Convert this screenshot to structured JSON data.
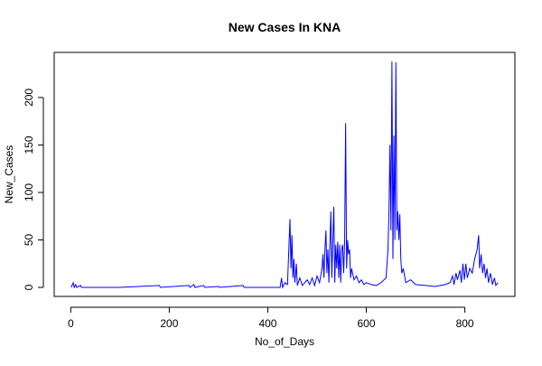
{
  "chart_data": {
    "type": "line",
    "title": "New Cases In KNA",
    "x_label": "No_of_Days",
    "y_label": "New_Cases",
    "color": "#0000ff",
    "x": [
      1,
      5,
      7,
      10,
      12,
      20,
      22,
      100,
      180,
      182,
      240,
      242,
      250,
      252,
      270,
      272,
      300,
      302,
      350,
      352,
      400,
      425,
      428,
      430,
      435,
      440,
      445,
      447,
      449,
      451,
      453,
      455,
      458,
      460,
      465,
      470,
      480,
      485,
      490,
      495,
      500,
      505,
      510,
      512,
      514,
      516,
      518,
      520,
      522,
      524,
      526,
      528,
      530,
      532,
      534,
      536,
      538,
      540,
      542,
      544,
      546,
      548,
      550,
      552,
      554,
      556,
      558,
      560,
      562,
      564,
      566,
      568,
      570,
      575,
      580,
      585,
      590,
      595,
      600,
      610,
      620,
      630,
      640,
      644,
      646,
      648,
      650,
      652,
      654,
      656,
      658,
      660,
      662,
      664,
      666,
      668,
      670,
      672,
      675,
      680,
      690,
      700,
      720,
      740,
      760,
      770,
      775,
      778,
      782,
      785,
      790,
      793,
      796,
      799,
      802,
      805,
      810,
      815,
      820,
      825,
      828,
      830,
      833,
      836,
      839,
      842,
      845,
      848,
      852,
      856,
      860,
      863,
      867
    ],
    "values": [
      0,
      5,
      0,
      3,
      0,
      2,
      0,
      0,
      2,
      0,
      2,
      0,
      3,
      0,
      2,
      0,
      1,
      0,
      2,
      0,
      0,
      0,
      10,
      0,
      5,
      3,
      72,
      20,
      55,
      10,
      30,
      5,
      25,
      2,
      10,
      2,
      8,
      3,
      10,
      2,
      12,
      5,
      20,
      35,
      10,
      40,
      60,
      15,
      40,
      5,
      45,
      80,
      10,
      50,
      85,
      5,
      45,
      20,
      48,
      10,
      45,
      5,
      40,
      45,
      15,
      48,
      173,
      20,
      50,
      35,
      40,
      10,
      20,
      8,
      12,
      5,
      8,
      3,
      5,
      3,
      2,
      5,
      10,
      40,
      80,
      150,
      60,
      238,
      30,
      160,
      50,
      237,
      60,
      80,
      50,
      77,
      30,
      15,
      20,
      5,
      8,
      3,
      2,
      1,
      3,
      5,
      12,
      3,
      15,
      8,
      18,
      5,
      25,
      8,
      25,
      10,
      20,
      15,
      30,
      40,
      55,
      20,
      35,
      15,
      25,
      10,
      20,
      5,
      15,
      3,
      10,
      2,
      5
    ],
    "xlim": [
      -33.6,
      901.6
    ],
    "ylim": [
      -9.5,
      247.5
    ],
    "xticks": [
      0,
      200,
      400,
      600,
      800
    ],
    "yticks": [
      0,
      50,
      100,
      150,
      200
    ]
  }
}
